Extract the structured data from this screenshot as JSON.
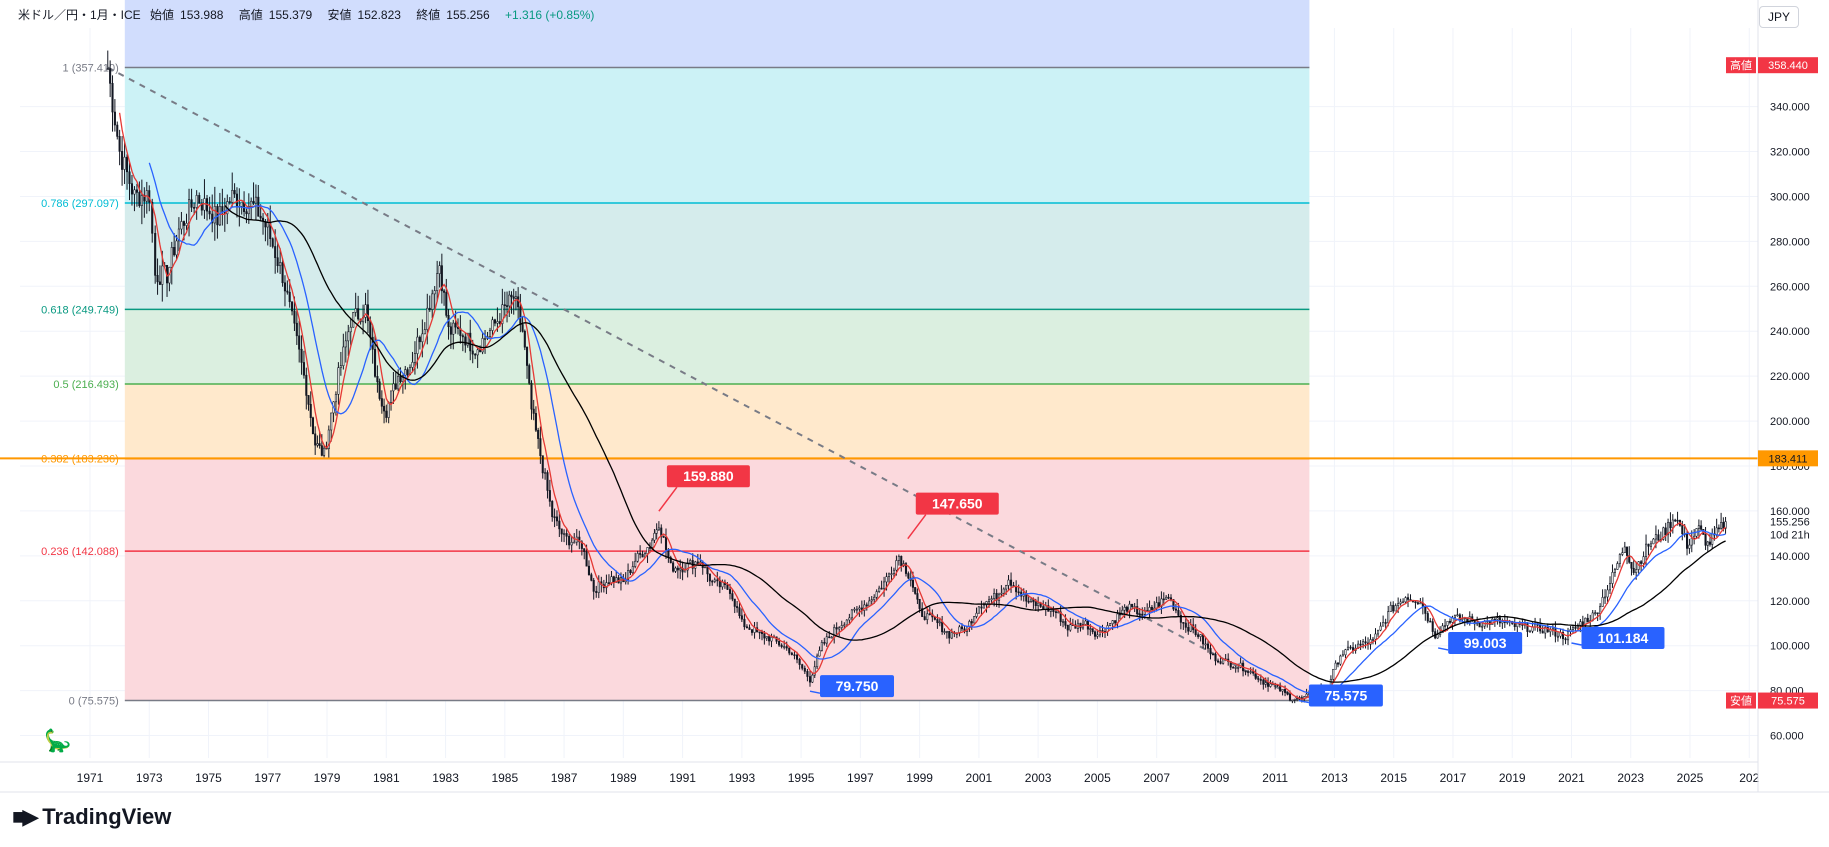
{
  "legend": {
    "symbol": "米ドル／円・1月・ICE",
    "open_label": "始値",
    "open": "153.988",
    "high_label": "高値",
    "high": "155.379",
    "low_label": "安値",
    "low": "152.823",
    "close_label": "終値",
    "close": "155.256",
    "change": "+1.316 (+0.85%)"
  },
  "currency": "JPY",
  "brand": "TradingView",
  "colors": {
    "candle": "#131722",
    "ma_fast": "#e53935",
    "ma_mid": "#2962ff",
    "ma_slow": "#000000",
    "trendline": "#787b86",
    "high_badge": "#f23645",
    "low_badge": "#f23645",
    "hline": "#ff9800",
    "callout_high": "#f23645",
    "callout_low": "#2962ff"
  },
  "chart_data": {
    "type": "candlestick",
    "x_axis": {
      "ticks": [
        "1971",
        "1973",
        "1975",
        "1977",
        "1979",
        "1981",
        "1983",
        "1985",
        "1987",
        "1989",
        "1991",
        "1993",
        "1995",
        "1997",
        "1999",
        "2001",
        "2003",
        "2005",
        "2007",
        "2009",
        "2011",
        "2013",
        "2015",
        "2017",
        "2019",
        "2021",
        "2023",
        "2025",
        "202"
      ]
    },
    "y_axis": {
      "ticks": [
        "60.000",
        "80.000",
        "100.000",
        "120.000",
        "140.000",
        "160.000",
        "180.000",
        "200.000",
        "220.000",
        "240.000",
        "260.000",
        "280.000",
        "300.000",
        "320.000",
        "340.000"
      ],
      "ylim": [
        50,
        375
      ],
      "side": "right"
    },
    "price_badges": [
      {
        "label": "高値",
        "value": "358.440",
        "price": 358.44
      },
      {
        "label": "",
        "value": "183.411",
        "price": 183.411
      },
      {
        "label": "安値",
        "value": "75.575",
        "price": 75.575
      }
    ],
    "last_price": {
      "value": "155.256",
      "countdown": "10d 21h",
      "price": 155.256
    },
    "fib_retracement": {
      "x_range": [
        1971.5,
        2011.75
      ],
      "levels": [
        {
          "ratio": 1,
          "label": "1 (357.410)",
          "price": 357.41,
          "color": "#787b86",
          "fill": "#e3e3e3"
        },
        {
          "ratio": 0.786,
          "label": "0.786 (297.097)",
          "price": 297.097,
          "color": "#00bcd4",
          "fill": "#ccf2f6"
        },
        {
          "ratio": 0.618,
          "label": "0.618 (249.749)",
          "price": 249.749,
          "color": "#089981",
          "fill": "#d5ecec"
        },
        {
          "ratio": 0.5,
          "label": "0.5 (216.493)",
          "price": 216.493,
          "color": "#4caf50",
          "fill": "#dbefe0"
        },
        {
          "ratio": 0.382,
          "label": "0.382 (183.236)",
          "price": 183.236,
          "color": "#ff9800",
          "fill": "#ffe9cc"
        },
        {
          "ratio": 0.236,
          "label": "0.236 (142.088)",
          "price": 142.088,
          "color": "#f23645",
          "fill": "#fbd9dd"
        },
        {
          "ratio": 0,
          "label": "0 (75.575)",
          "price": 75.575,
          "color": "#787b86",
          "fill": "#ffffff"
        }
      ],
      "top_fill": "#d1ddfd"
    },
    "horizontal_line": {
      "price": 183.411
    },
    "trendline": {
      "from": [
        1971.6,
        357.41
      ],
      "to": [
        2011.9,
        75.6
      ]
    },
    "callouts": [
      {
        "text": "159.880",
        "x": 1990.2,
        "price": 159.88,
        "kind": "high"
      },
      {
        "text": "147.650",
        "x": 1998.6,
        "price": 147.65,
        "kind": "high"
      },
      {
        "text": "79.750",
        "x": 1995.3,
        "price": 79.75,
        "kind": "low"
      },
      {
        "text": "75.575",
        "x": 2011.8,
        "price": 75.575,
        "kind": "low"
      },
      {
        "text": "99.003",
        "x": 2016.5,
        "price": 99.0,
        "kind": "low"
      },
      {
        "text": "101.184",
        "x": 2021.0,
        "price": 101.184,
        "kind": "low"
      }
    ],
    "anchors": [
      [
        1971.6,
        357
      ],
      [
        1972.0,
        320
      ],
      [
        1972.5,
        300
      ],
      [
        1973.0,
        301
      ],
      [
        1973.2,
        265
      ],
      [
        1973.6,
        265
      ],
      [
        1974.0,
        285
      ],
      [
        1974.6,
        300
      ],
      [
        1975.3,
        290
      ],
      [
        1975.8,
        300
      ],
      [
        1976.6,
        295
      ],
      [
        1977.0,
        285
      ],
      [
        1977.5,
        265
      ],
      [
        1977.9,
        240
      ],
      [
        1978.3,
        215
      ],
      [
        1978.6,
        190
      ],
      [
        1978.9,
        185
      ],
      [
        1979.3,
        215
      ],
      [
        1979.8,
        245
      ],
      [
        1980.3,
        250
      ],
      [
        1980.7,
        215
      ],
      [
        1981.0,
        205
      ],
      [
        1981.4,
        220
      ],
      [
        1981.8,
        225
      ],
      [
        1982.3,
        245
      ],
      [
        1982.8,
        270
      ],
      [
        1983.1,
        240
      ],
      [
        1983.5,
        240
      ],
      [
        1984.0,
        232
      ],
      [
        1984.5,
        240
      ],
      [
        1985.0,
        250
      ],
      [
        1985.3,
        255
      ],
      [
        1985.6,
        240
      ],
      [
        1985.9,
        205
      ],
      [
        1986.2,
        185
      ],
      [
        1986.6,
        158
      ],
      [
        1987.0,
        148
      ],
      [
        1987.6,
        145
      ],
      [
        1988.0,
        125
      ],
      [
        1988.6,
        130
      ],
      [
        1989.0,
        128
      ],
      [
        1989.4,
        138
      ],
      [
        1989.9,
        145
      ],
      [
        1990.2,
        155
      ],
      [
        1990.6,
        135
      ],
      [
        1991.0,
        135
      ],
      [
        1991.6,
        138
      ],
      [
        1992.0,
        128
      ],
      [
        1992.6,
        125
      ],
      [
        1993.0,
        110
      ],
      [
        1993.6,
        105
      ],
      [
        1994.0,
        103
      ],
      [
        1994.6,
        98
      ],
      [
        1995.3,
        85
      ],
      [
        1995.7,
        100
      ],
      [
        1996.2,
        108
      ],
      [
        1996.8,
        115
      ],
      [
        1997.3,
        120
      ],
      [
        1997.8,
        128
      ],
      [
        1998.3,
        140
      ],
      [
        1998.7,
        130
      ],
      [
        1999.0,
        115
      ],
      [
        1999.6,
        110
      ],
      [
        2000.0,
        105
      ],
      [
        2000.6,
        108
      ],
      [
        2001.0,
        118
      ],
      [
        2001.6,
        122
      ],
      [
        2002.0,
        130
      ],
      [
        2002.6,
        120
      ],
      [
        2003.0,
        118
      ],
      [
        2003.6,
        115
      ],
      [
        2004.0,
        108
      ],
      [
        2004.6,
        110
      ],
      [
        2005.0,
        105
      ],
      [
        2005.6,
        112
      ],
      [
        2006.0,
        117
      ],
      [
        2006.6,
        114
      ],
      [
        2007.0,
        118
      ],
      [
        2007.4,
        122
      ],
      [
        2007.9,
        110
      ],
      [
        2008.4,
        105
      ],
      [
        2008.9,
        95
      ],
      [
        2009.5,
        92
      ],
      [
        2010.0,
        90
      ],
      [
        2010.6,
        84
      ],
      [
        2011.0,
        82
      ],
      [
        2011.5,
        77
      ],
      [
        2011.9,
        76
      ],
      [
        2012.3,
        79
      ],
      [
        2012.8,
        83
      ],
      [
        2013.2,
        96
      ],
      [
        2013.8,
        100
      ],
      [
        2014.3,
        102
      ],
      [
        2014.9,
        116
      ],
      [
        2015.4,
        122
      ],
      [
        2015.9,
        120
      ],
      [
        2016.4,
        105
      ],
      [
        2016.9,
        112
      ],
      [
        2017.4,
        112
      ],
      [
        2017.9,
        110
      ],
      [
        2018.5,
        111
      ],
      [
        2019.0,
        109
      ],
      [
        2019.6,
        108
      ],
      [
        2020.2,
        107
      ],
      [
        2020.8,
        104
      ],
      [
        2021.3,
        110
      ],
      [
        2021.8,
        114
      ],
      [
        2022.3,
        128
      ],
      [
        2022.8,
        145
      ],
      [
        2023.1,
        133
      ],
      [
        2023.6,
        145
      ],
      [
        2024.1,
        150
      ],
      [
        2024.5,
        158
      ],
      [
        2024.9,
        145
      ],
      [
        2025.3,
        152
      ],
      [
        2025.6,
        145
      ],
      [
        2025.9,
        150
      ],
      [
        2026.2,
        155.256
      ]
    ]
  }
}
